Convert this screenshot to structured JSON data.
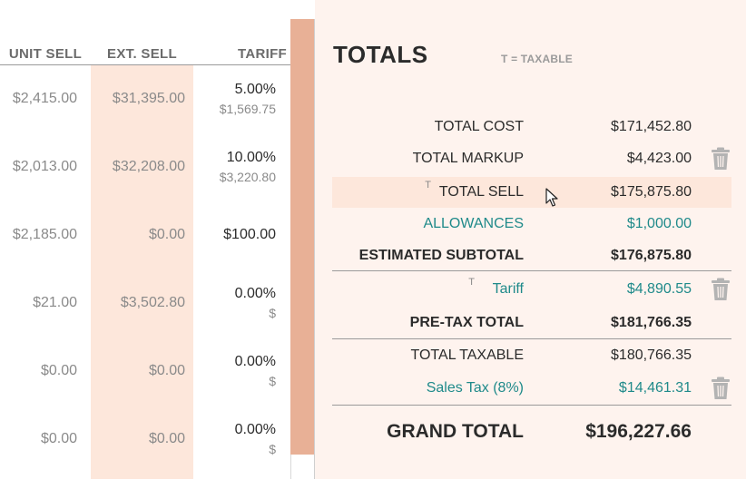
{
  "table": {
    "headers": {
      "unit_sell": "UNIT SELL",
      "ext_sell": "EXT. SELL",
      "tariff": "TARIFF"
    },
    "rows": [
      {
        "unit_sell": "$2,415.00",
        "ext_sell": "$31,395.00",
        "tariff_pct": "5.00%",
        "tariff_amt": "$1,569.75"
      },
      {
        "unit_sell": "$2,013.00",
        "ext_sell": "$32,208.00",
        "tariff_pct": "10.00%",
        "tariff_amt": "$3,220.80"
      },
      {
        "unit_sell": "$2,185.00",
        "ext_sell": "$0.00",
        "tariff_pct": "$100.00",
        "tariff_amt": ""
      },
      {
        "unit_sell": "$21.00",
        "ext_sell": "$3,502.80",
        "tariff_pct": "0.00%",
        "tariff_amt": "$"
      },
      {
        "unit_sell": "$0.00",
        "ext_sell": "$0.00",
        "tariff_pct": "0.00%",
        "tariff_amt": "$"
      },
      {
        "unit_sell": "$0.00",
        "ext_sell": "$0.00",
        "tariff_pct": "0.00%",
        "tariff_amt": "$"
      }
    ]
  },
  "totals": {
    "title": "TOTALS",
    "taxable_note": "T = TAXABLE",
    "taxable_marker": "T",
    "total_cost": {
      "label": "TOTAL COST",
      "value": "$171,452.80"
    },
    "total_markup": {
      "label": "TOTAL MARKUP",
      "value": "$4,423.00"
    },
    "total_sell": {
      "label": "TOTAL SELL",
      "value": "$175,875.80"
    },
    "allowances": {
      "label": "ALLOWANCES",
      "value": "$1,000.00"
    },
    "estimated_subtotal": {
      "label": "ESTIMATED SUBTOTAL",
      "value": "$176,875.80"
    },
    "tariff": {
      "label": "Tariff",
      "value": "$4,890.55"
    },
    "pre_tax_total": {
      "label": "PRE-TAX TOTAL",
      "value": "$181,766.35"
    },
    "total_taxable": {
      "label": "TOTAL TAXABLE",
      "value": "$180,766.35"
    },
    "sales_tax": {
      "label": "Sales Tax (8%)",
      "value": "$14,461.31"
    },
    "grand_total": {
      "label": "GRAND TOTAL",
      "value": "$196,227.66"
    }
  },
  "colors": {
    "accent_teal": "#1f8a8a",
    "panel_bg": "#fef3ee",
    "highlight_bg": "#fde7db",
    "divider_bar": "#e8b096"
  },
  "icons": {
    "delete": "trash-icon",
    "pointer": "mouse-cursor-icon"
  }
}
